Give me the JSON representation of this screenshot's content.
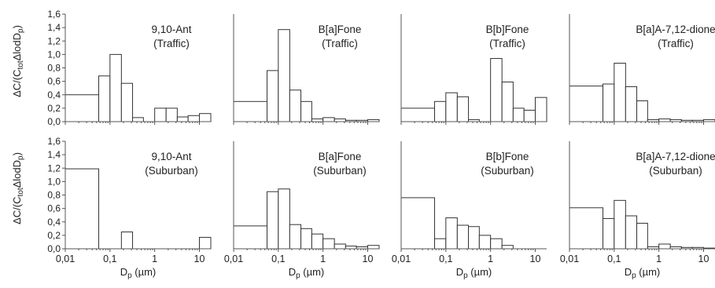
{
  "figure": {
    "ylabel_top": "ΔC/(Ctot ΔlodDp)",
    "ylabel_bottom": "ΔC/(Ctot ΔlodDp)",
    "xlabel": "Dp (µm)"
  },
  "chart_data": [
    {
      "type": "bar",
      "row": 0,
      "col": 0,
      "label_line1": "9,10-Ant",
      "label_line2": "(Traffic)",
      "xscale": "log",
      "xlim": [
        0.01,
        18
      ],
      "ylim": [
        0,
        1.6
      ],
      "yticks": [
        "0,0",
        "0,2",
        "0,4",
        "0,6",
        "0,8",
        "1,0",
        "1,2",
        "1,4",
        "1,6"
      ],
      "xticks": [],
      "bins": [
        [
          0.01,
          0.056,
          0.4
        ],
        [
          0.056,
          0.1,
          0.68
        ],
        [
          0.1,
          0.18,
          1.0
        ],
        [
          0.18,
          0.32,
          0.57
        ],
        [
          0.32,
          0.56,
          0.06
        ],
        [
          1.0,
          1.8,
          0.2
        ],
        [
          1.8,
          3.2,
          0.2
        ],
        [
          3.2,
          5.6,
          0.07
        ],
        [
          5.6,
          10,
          0.09
        ],
        [
          10,
          18,
          0.12
        ]
      ]
    },
    {
      "type": "bar",
      "row": 0,
      "col": 1,
      "label_line1": "B[a]Fone",
      "label_line2": "(Traffic)",
      "xscale": "log",
      "xlim": [
        0.01,
        18
      ],
      "ylim": [
        0,
        1.6
      ],
      "yticks": [],
      "xticks": [],
      "bins": [
        [
          0.01,
          0.056,
          0.3
        ],
        [
          0.056,
          0.1,
          0.76
        ],
        [
          0.1,
          0.18,
          1.37
        ],
        [
          0.18,
          0.32,
          0.47
        ],
        [
          0.32,
          0.56,
          0.3
        ],
        [
          0.56,
          1.0,
          0.04
        ],
        [
          1.0,
          1.8,
          0.06
        ],
        [
          1.8,
          3.2,
          0.04
        ],
        [
          3.2,
          5.6,
          0.02
        ],
        [
          5.6,
          10,
          0.02
        ],
        [
          10,
          18,
          0.03
        ]
      ]
    },
    {
      "type": "bar",
      "row": 0,
      "col": 2,
      "label_line1": "B[b]Fone",
      "label_line2": "(Traffic)",
      "xscale": "log",
      "xlim": [
        0.01,
        18
      ],
      "ylim": [
        0,
        1.6
      ],
      "yticks": [],
      "xticks": [],
      "bins": [
        [
          0.01,
          0.056,
          0.2
        ],
        [
          0.056,
          0.1,
          0.3
        ],
        [
          0.1,
          0.18,
          0.43
        ],
        [
          0.18,
          0.32,
          0.37
        ],
        [
          0.32,
          0.56,
          0.03
        ],
        [
          1.0,
          1.8,
          0.94
        ],
        [
          1.8,
          3.2,
          0.59
        ],
        [
          3.2,
          5.6,
          0.2
        ],
        [
          5.6,
          10,
          0.17
        ],
        [
          10,
          18,
          0.36
        ]
      ]
    },
    {
      "type": "bar",
      "row": 0,
      "col": 3,
      "label_line1": "B[a]A-7,12-dione",
      "label_line2": "(Traffic)",
      "xscale": "log",
      "xlim": [
        0.01,
        18
      ],
      "ylim": [
        0,
        1.6
      ],
      "yticks": [],
      "xticks": [],
      "bins": [
        [
          0.01,
          0.056,
          0.53
        ],
        [
          0.056,
          0.1,
          0.56
        ],
        [
          0.1,
          0.18,
          0.87
        ],
        [
          0.18,
          0.32,
          0.52
        ],
        [
          0.32,
          0.56,
          0.31
        ],
        [
          0.56,
          1.0,
          0.03
        ],
        [
          1.0,
          1.8,
          0.04
        ],
        [
          1.8,
          3.2,
          0.03
        ],
        [
          3.2,
          5.6,
          0.02
        ],
        [
          5.6,
          10,
          0.02
        ],
        [
          10,
          18,
          0.03
        ]
      ]
    },
    {
      "type": "bar",
      "row": 1,
      "col": 0,
      "label_line1": "9,10-Ant",
      "label_line2": "(Suburban)",
      "xscale": "log",
      "xlim": [
        0.01,
        18
      ],
      "ylim": [
        0,
        1.6
      ],
      "yticks": [
        "0,0",
        "0,2",
        "0,4",
        "0,6",
        "0,8",
        "1,0",
        "1,2",
        "1,4",
        "1,6"
      ],
      "xticks": [
        {
          "v": 0.01,
          "t": "0,01"
        },
        {
          "v": 0.1,
          "t": "0,1"
        },
        {
          "v": 1,
          "t": "1"
        },
        {
          "v": 10,
          "t": "10"
        }
      ],
      "bins": [
        [
          0.01,
          0.056,
          1.19
        ],
        [
          0.18,
          0.32,
          0.25
        ],
        [
          10,
          18,
          0.17
        ]
      ]
    },
    {
      "type": "bar",
      "row": 1,
      "col": 1,
      "label_line1": "B[a]Fone",
      "label_line2": "(Suburban)",
      "xscale": "log",
      "xlim": [
        0.01,
        18
      ],
      "ylim": [
        0,
        1.6
      ],
      "yticks": [],
      "xticks": [
        {
          "v": 0.01,
          "t": "0,01"
        },
        {
          "v": 0.1,
          "t": "0,1"
        },
        {
          "v": 1,
          "t": "1"
        },
        {
          "v": 10,
          "t": "10"
        }
      ],
      "bins": [
        [
          0.01,
          0.056,
          0.34
        ],
        [
          0.056,
          0.1,
          0.85
        ],
        [
          0.1,
          0.18,
          0.89
        ],
        [
          0.18,
          0.32,
          0.36
        ],
        [
          0.32,
          0.56,
          0.3
        ],
        [
          0.56,
          1.0,
          0.22
        ],
        [
          1.0,
          1.8,
          0.15
        ],
        [
          1.8,
          3.2,
          0.07
        ],
        [
          3.2,
          5.6,
          0.04
        ],
        [
          5.6,
          10,
          0.03
        ],
        [
          10,
          18,
          0.05
        ]
      ]
    },
    {
      "type": "bar",
      "row": 1,
      "col": 2,
      "label_line1": "B[b]Fone",
      "label_line2": "(Suburban)",
      "xscale": "log",
      "xlim": [
        0.01,
        18
      ],
      "ylim": [
        0,
        1.6
      ],
      "yticks": [],
      "xticks": [
        {
          "v": 0.01,
          "t": "0,01"
        },
        {
          "v": 0.1,
          "t": "0,1"
        },
        {
          "v": 1,
          "t": "1"
        },
        {
          "v": 10,
          "t": "10"
        }
      ],
      "bins": [
        [
          0.01,
          0.056,
          0.76
        ],
        [
          0.056,
          0.1,
          0.15
        ],
        [
          0.1,
          0.18,
          0.46
        ],
        [
          0.18,
          0.32,
          0.35
        ],
        [
          0.32,
          0.56,
          0.33
        ],
        [
          0.56,
          1.0,
          0.2
        ],
        [
          1.0,
          1.8,
          0.15
        ],
        [
          1.8,
          3.2,
          0.05
        ]
      ]
    },
    {
      "type": "bar",
      "row": 1,
      "col": 3,
      "label_line1": "B[a]A-7,12-dione",
      "label_line2": "(Suburban)",
      "xscale": "log",
      "xlim": [
        0.01,
        18
      ],
      "ylim": [
        0,
        1.6
      ],
      "yticks": [],
      "xticks": [
        {
          "v": 0.01,
          "t": "0,01"
        },
        {
          "v": 0.1,
          "t": "0,1"
        },
        {
          "v": 1,
          "t": "1"
        },
        {
          "v": 10,
          "t": "10"
        }
      ],
      "bins": [
        [
          0.01,
          0.056,
          0.61
        ],
        [
          0.056,
          0.1,
          0.45
        ],
        [
          0.1,
          0.18,
          0.72
        ],
        [
          0.18,
          0.32,
          0.49
        ],
        [
          0.32,
          0.56,
          0.38
        ],
        [
          0.56,
          1.0,
          0.03
        ],
        [
          1.0,
          1.8,
          0.07
        ],
        [
          1.8,
          3.2,
          0.03
        ],
        [
          3.2,
          5.6,
          0.02
        ],
        [
          5.6,
          10,
          0.02
        ],
        [
          10,
          18,
          0.01
        ]
      ]
    }
  ]
}
